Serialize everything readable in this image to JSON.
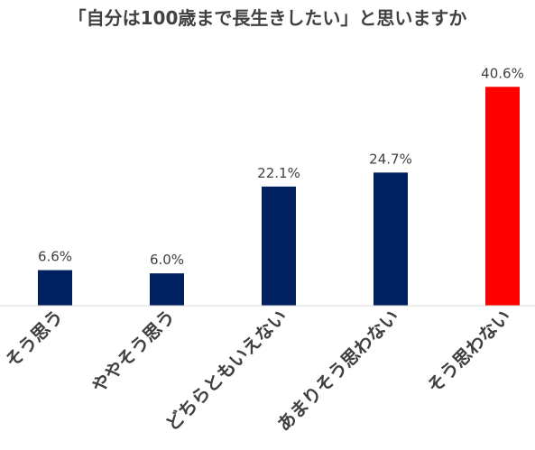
{
  "chart_data": {
    "type": "bar",
    "title": "「自分は100歳まで長生きしたい」と思いますか",
    "xlabel": "",
    "ylabel": "",
    "categories": [
      "そう思う",
      "ややそう思う",
      "どちらともいえない",
      "あまりそう思わない",
      "そう思わない"
    ],
    "values": [
      6.6,
      6.0,
      22.1,
      24.7,
      40.6
    ],
    "value_labels": [
      "6.6%",
      "6.0%",
      "22.1%",
      "24.7%",
      "40.6%"
    ],
    "ylim": [
      0,
      45
    ],
    "grid": false,
    "legend": "none",
    "bar_colors": [
      "#002060",
      "#002060",
      "#002060",
      "#002060",
      "#FF0000"
    ]
  }
}
